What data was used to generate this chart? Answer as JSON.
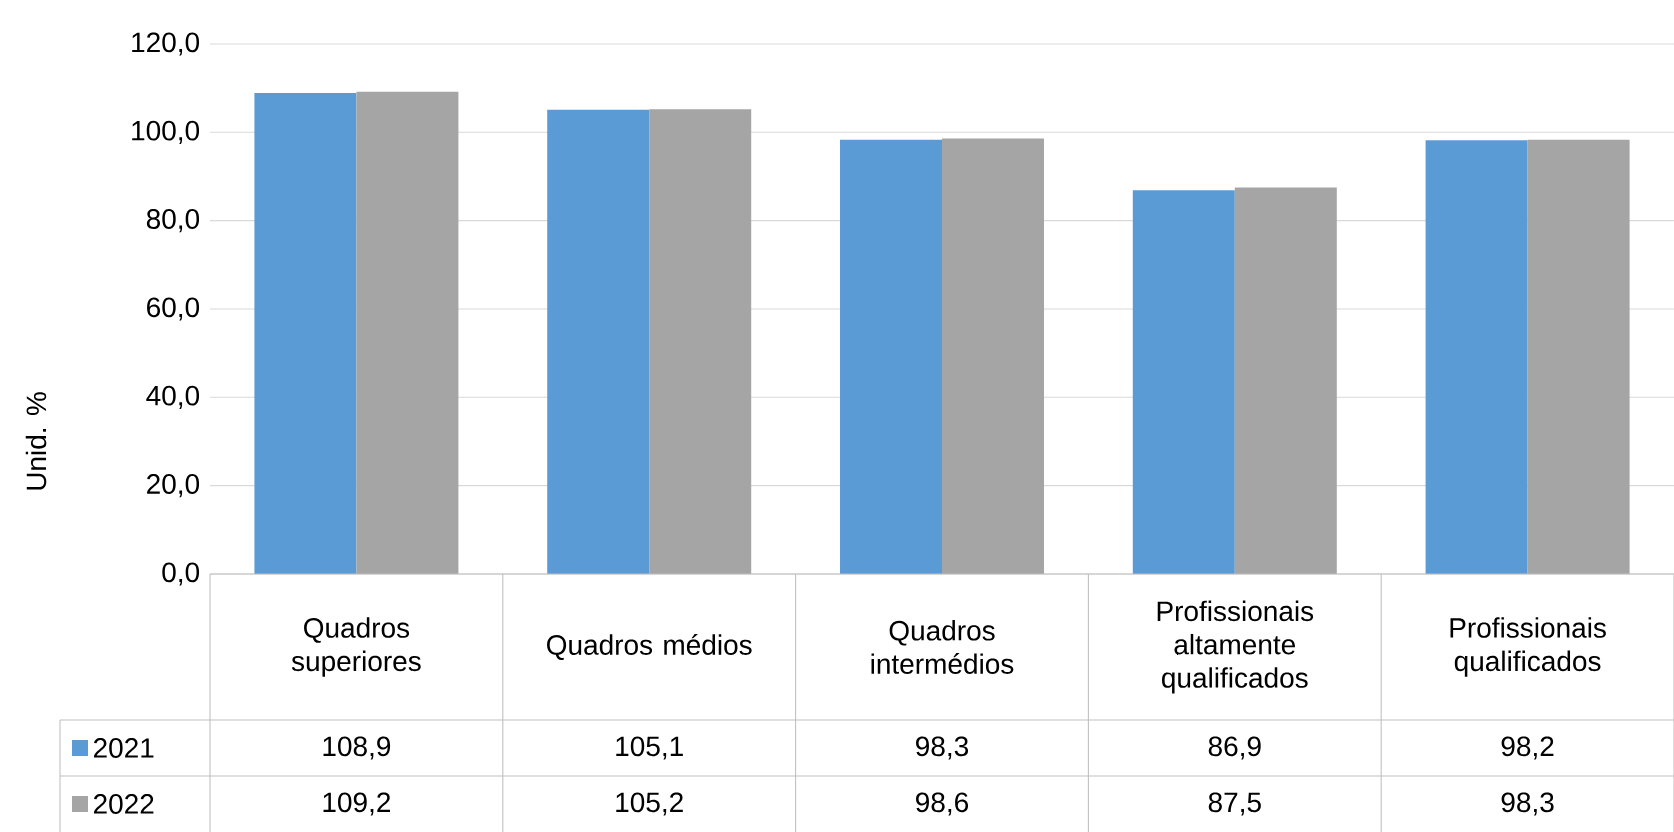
{
  "chart_data": {
    "type": "bar",
    "ylabel": "Unid. %",
    "categories": [
      "Quadros superiores",
      "Quadros médios",
      "Quadros intermédios",
      "Profissionais altamente qualificados",
      "Profissionais qualificados"
    ],
    "series": [
      {
        "name": "2021",
        "color": "#5b9bd5",
        "values": [
          108.9,
          105.1,
          98.3,
          86.9,
          98.2
        ],
        "value_labels": [
          "108,9",
          "105,1",
          "98,3",
          "86,9",
          "98,2"
        ]
      },
      {
        "name": "2022",
        "color": "#a5a5a5",
        "values": [
          109.2,
          105.2,
          98.6,
          87.5,
          98.3
        ],
        "value_labels": [
          "109,2",
          "105,2",
          "98,6",
          "87,5",
          "98,3"
        ]
      }
    ],
    "ylim": [
      0,
      120
    ],
    "yticks": [
      {
        "value": 0,
        "label": "0,0"
      },
      {
        "value": 20,
        "label": "20,0"
      },
      {
        "value": 40,
        "label": "40,0"
      },
      {
        "value": 60,
        "label": "60,0"
      },
      {
        "value": 80,
        "label": "80,0"
      },
      {
        "value": 100,
        "label": "100,0"
      },
      {
        "value": 120,
        "label": "120,0"
      }
    ],
    "grid": "y",
    "legend": "bottom"
  }
}
